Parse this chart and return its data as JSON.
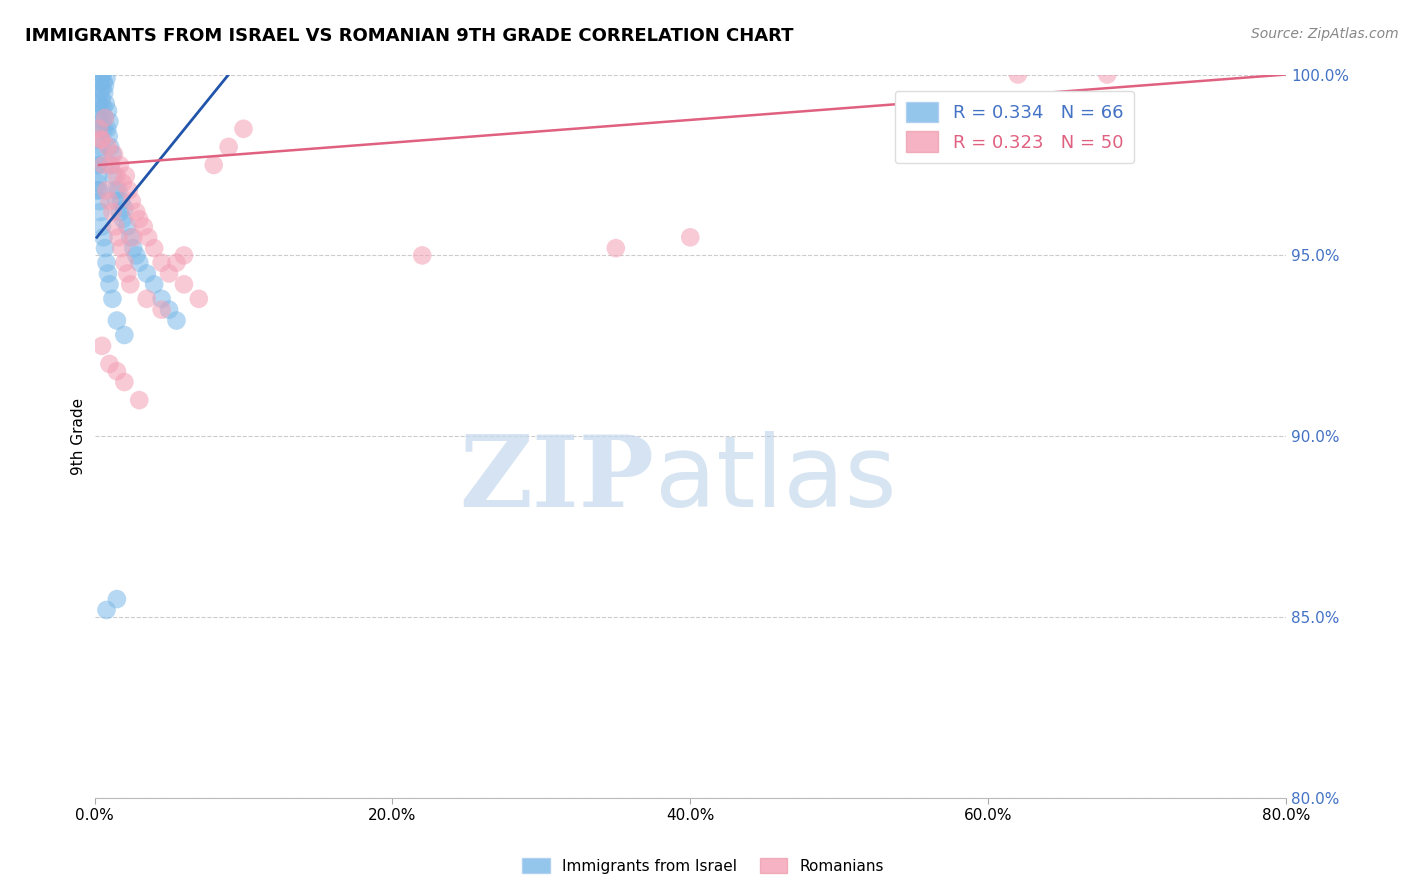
{
  "title": "IMMIGRANTS FROM ISRAEL VS ROMANIAN 9TH GRADE CORRELATION CHART",
  "source_text": "Source: ZipAtlas.com",
  "ylabel": "9th Grade",
  "xlim": [
    0.0,
    80.0
  ],
  "ylim": [
    80.0,
    100.0
  ],
  "xticks": [
    0.0,
    20.0,
    40.0,
    60.0,
    80.0
  ],
  "yticks": [
    80.0,
    85.0,
    90.0,
    95.0,
    100.0
  ],
  "blue_R": 0.334,
  "blue_N": 66,
  "pink_R": 0.323,
  "pink_N": 50,
  "blue_color": "#7ab8e8",
  "pink_color": "#f4a0b5",
  "blue_line_color": "#2255aa",
  "pink_line_color": "#e06080",
  "watermark_zip": "ZIP",
  "watermark_atlas": "atlas",
  "legend_label_blue": "Immigrants from Israel",
  "legend_label_pink": "Romanians",
  "blue_x": [
    0.15,
    0.18,
    0.2,
    0.22,
    0.25,
    0.28,
    0.3,
    0.32,
    0.35,
    0.38,
    0.4,
    0.42,
    0.45,
    0.48,
    0.5,
    0.52,
    0.55,
    0.58,
    0.6,
    0.63,
    0.65,
    0.68,
    0.7,
    0.75,
    0.8,
    0.85,
    0.9,
    0.95,
    1.0,
    1.05,
    1.1,
    1.2,
    1.3,
    1.4,
    1.5,
    1.6,
    1.7,
    1.8,
    1.9,
    2.0,
    2.2,
    2.4,
    2.6,
    2.8,
    3.0,
    3.5,
    4.0,
    4.5,
    5.0,
    5.5,
    0.2,
    0.25,
    0.3,
    0.35,
    0.4,
    0.5,
    0.6,
    0.7,
    0.8,
    0.9,
    1.0,
    1.2,
    1.5,
    2.0,
    0.8,
    1.5
  ],
  "blue_y": [
    96.8,
    97.5,
    98.2,
    97.0,
    98.8,
    97.5,
    99.2,
    98.5,
    99.5,
    98.0,
    99.8,
    99.0,
    100.0,
    99.3,
    99.6,
    98.7,
    100.0,
    99.1,
    99.8,
    98.5,
    99.5,
    98.8,
    99.7,
    99.2,
    99.9,
    98.5,
    99.0,
    98.3,
    98.7,
    98.0,
    97.5,
    97.8,
    97.2,
    96.8,
    96.5,
    96.8,
    96.2,
    96.5,
    96.0,
    96.3,
    95.8,
    95.5,
    95.2,
    95.0,
    94.8,
    94.5,
    94.2,
    93.8,
    93.5,
    93.2,
    97.8,
    97.2,
    96.8,
    96.5,
    96.2,
    95.8,
    95.5,
    95.2,
    94.8,
    94.5,
    94.2,
    93.8,
    93.2,
    92.8,
    85.2,
    85.5
  ],
  "blue_line_x": [
    0.15,
    9.0
  ],
  "blue_line_y": [
    95.5,
    100.0
  ],
  "pink_x": [
    0.3,
    0.5,
    0.7,
    0.9,
    1.1,
    1.3,
    1.5,
    1.7,
    1.9,
    2.1,
    2.3,
    2.5,
    2.8,
    3.0,
    3.3,
    3.6,
    4.0,
    4.5,
    5.0,
    5.5,
    6.0,
    7.0,
    8.0,
    9.0,
    10.0,
    0.4,
    0.6,
    0.8,
    1.0,
    1.2,
    1.4,
    1.6,
    1.8,
    2.0,
    2.2,
    2.4,
    2.6,
    3.5,
    4.5,
    6.0,
    0.5,
    1.0,
    1.5,
    2.0,
    3.0,
    35.0,
    40.0,
    62.0,
    68.0,
    22.0
  ],
  "pink_y": [
    98.5,
    98.2,
    98.8,
    98.0,
    97.5,
    97.8,
    97.2,
    97.5,
    97.0,
    97.2,
    96.8,
    96.5,
    96.2,
    96.0,
    95.8,
    95.5,
    95.2,
    94.8,
    94.5,
    94.8,
    94.2,
    93.8,
    97.5,
    98.0,
    98.5,
    98.2,
    97.5,
    96.8,
    96.5,
    96.2,
    95.8,
    95.5,
    95.2,
    94.8,
    94.5,
    94.2,
    95.5,
    93.8,
    93.5,
    95.0,
    92.5,
    92.0,
    91.8,
    91.5,
    91.0,
    95.2,
    95.5,
    100.0,
    100.0,
    95.0
  ],
  "pink_line_x": [
    0.3,
    80.0
  ],
  "pink_line_y": [
    97.5,
    100.0
  ]
}
